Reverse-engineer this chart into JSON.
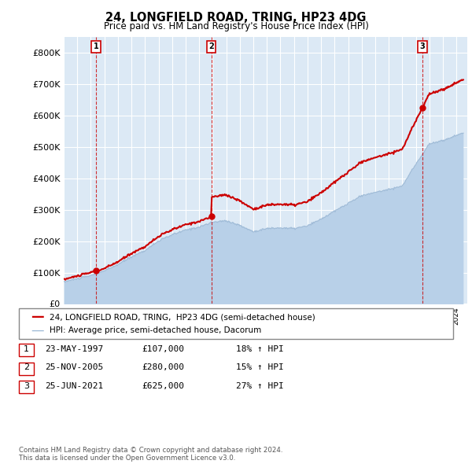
{
  "title": "24, LONGFIELD ROAD, TRING, HP23 4DG",
  "subtitle": "Price paid vs. HM Land Registry's House Price Index (HPI)",
  "ylim": [
    0,
    850000
  ],
  "yticks": [
    0,
    100000,
    200000,
    300000,
    400000,
    500000,
    600000,
    700000,
    800000
  ],
  "ytick_labels": [
    "£0",
    "£100K",
    "£200K",
    "£300K",
    "£400K",
    "£500K",
    "£600K",
    "£700K",
    "£800K"
  ],
  "sale_dates": [
    1997.39,
    2005.9,
    2021.48
  ],
  "sale_prices": [
    107000,
    280000,
    625000
  ],
  "sale_labels": [
    "1",
    "2",
    "3"
  ],
  "hpi_color": "#b8d0e8",
  "hpi_line_color": "#a0bcd8",
  "price_color": "#cc0000",
  "marker_color": "#cc0000",
  "legend_label_price": "24, LONGFIELD ROAD, TRING,  HP23 4DG (semi-detached house)",
  "legend_label_hpi": "HPI: Average price, semi-detached house, Dacorum",
  "table_rows": [
    [
      "1",
      "23-MAY-1997",
      "£107,000",
      "18% ↑ HPI"
    ],
    [
      "2",
      "25-NOV-2005",
      "£280,000",
      "15% ↑ HPI"
    ],
    [
      "3",
      "25-JUN-2021",
      "£625,000",
      "27% ↑ HPI"
    ]
  ],
  "footer": "Contains HM Land Registry data © Crown copyright and database right 2024.\nThis data is licensed under the Open Government Licence v3.0.",
  "bg_color": "#dce9f5"
}
